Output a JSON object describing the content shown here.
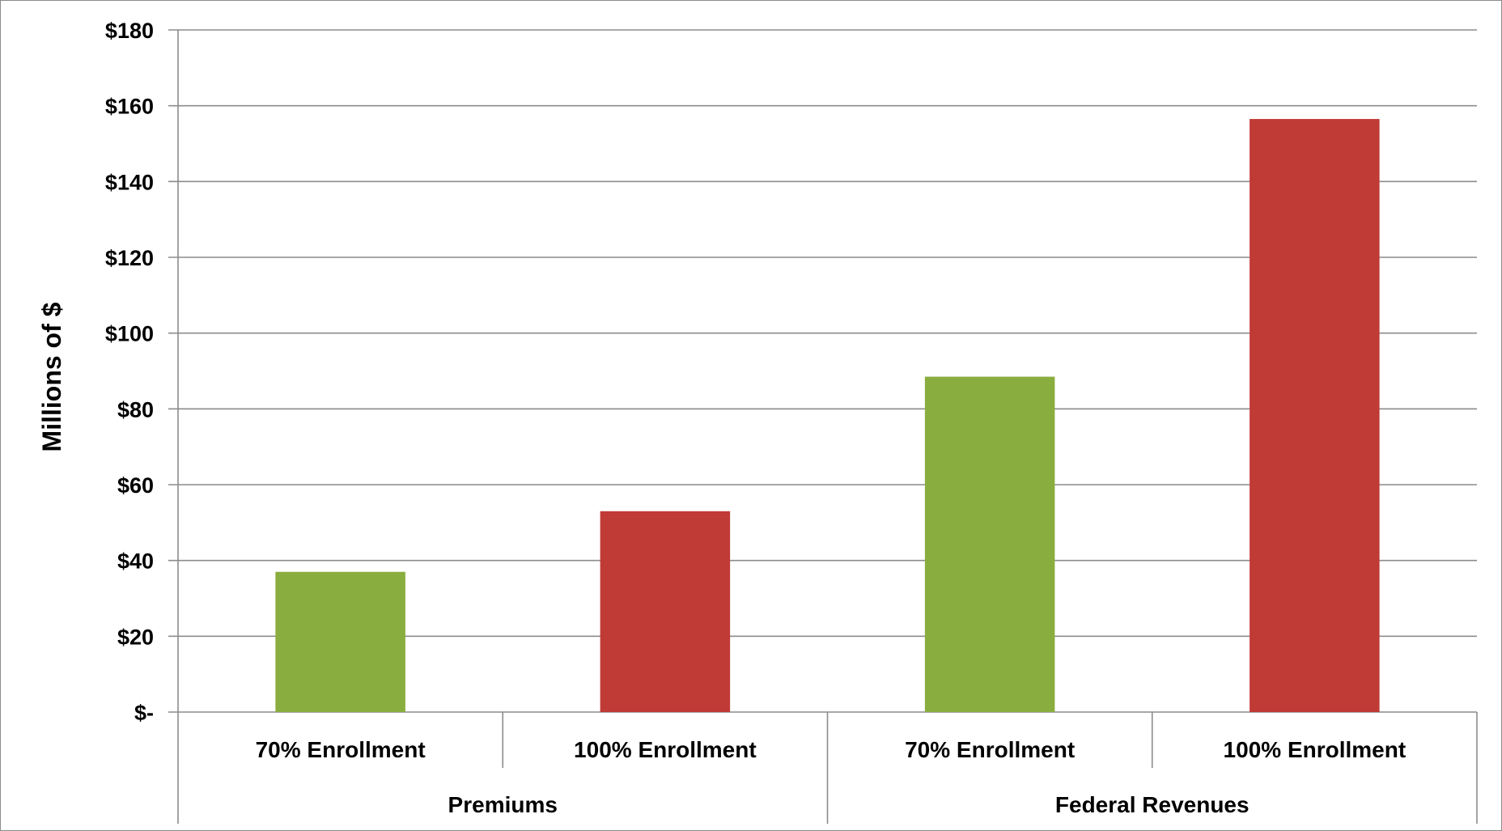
{
  "chart_data": {
    "type": "bar",
    "ylabel": "Millions of $",
    "ylim": [
      0,
      180
    ],
    "y_ticks": [
      0,
      20,
      40,
      60,
      80,
      100,
      120,
      140,
      160,
      180
    ],
    "y_tick_labels": [
      "$-",
      "$20",
      "$40",
      "$60",
      "$80",
      "$100",
      "$120",
      "$140",
      "$160",
      "$180"
    ],
    "grid": true,
    "categories": [
      "70% Enrollment",
      "100% Enrollment",
      "70% Enrollment",
      "100% Enrollment"
    ],
    "groups": [
      "Premiums",
      "Federal Revenues"
    ],
    "values": [
      37,
      53,
      88.5,
      156.5
    ],
    "bar_colors": [
      "#8aad3f",
      "#c03a36",
      "#8aad3f",
      "#c03a36"
    ],
    "colors": {
      "green": "#8aad3f",
      "red": "#c03a36",
      "gridline": "#8c8c8c"
    }
  }
}
